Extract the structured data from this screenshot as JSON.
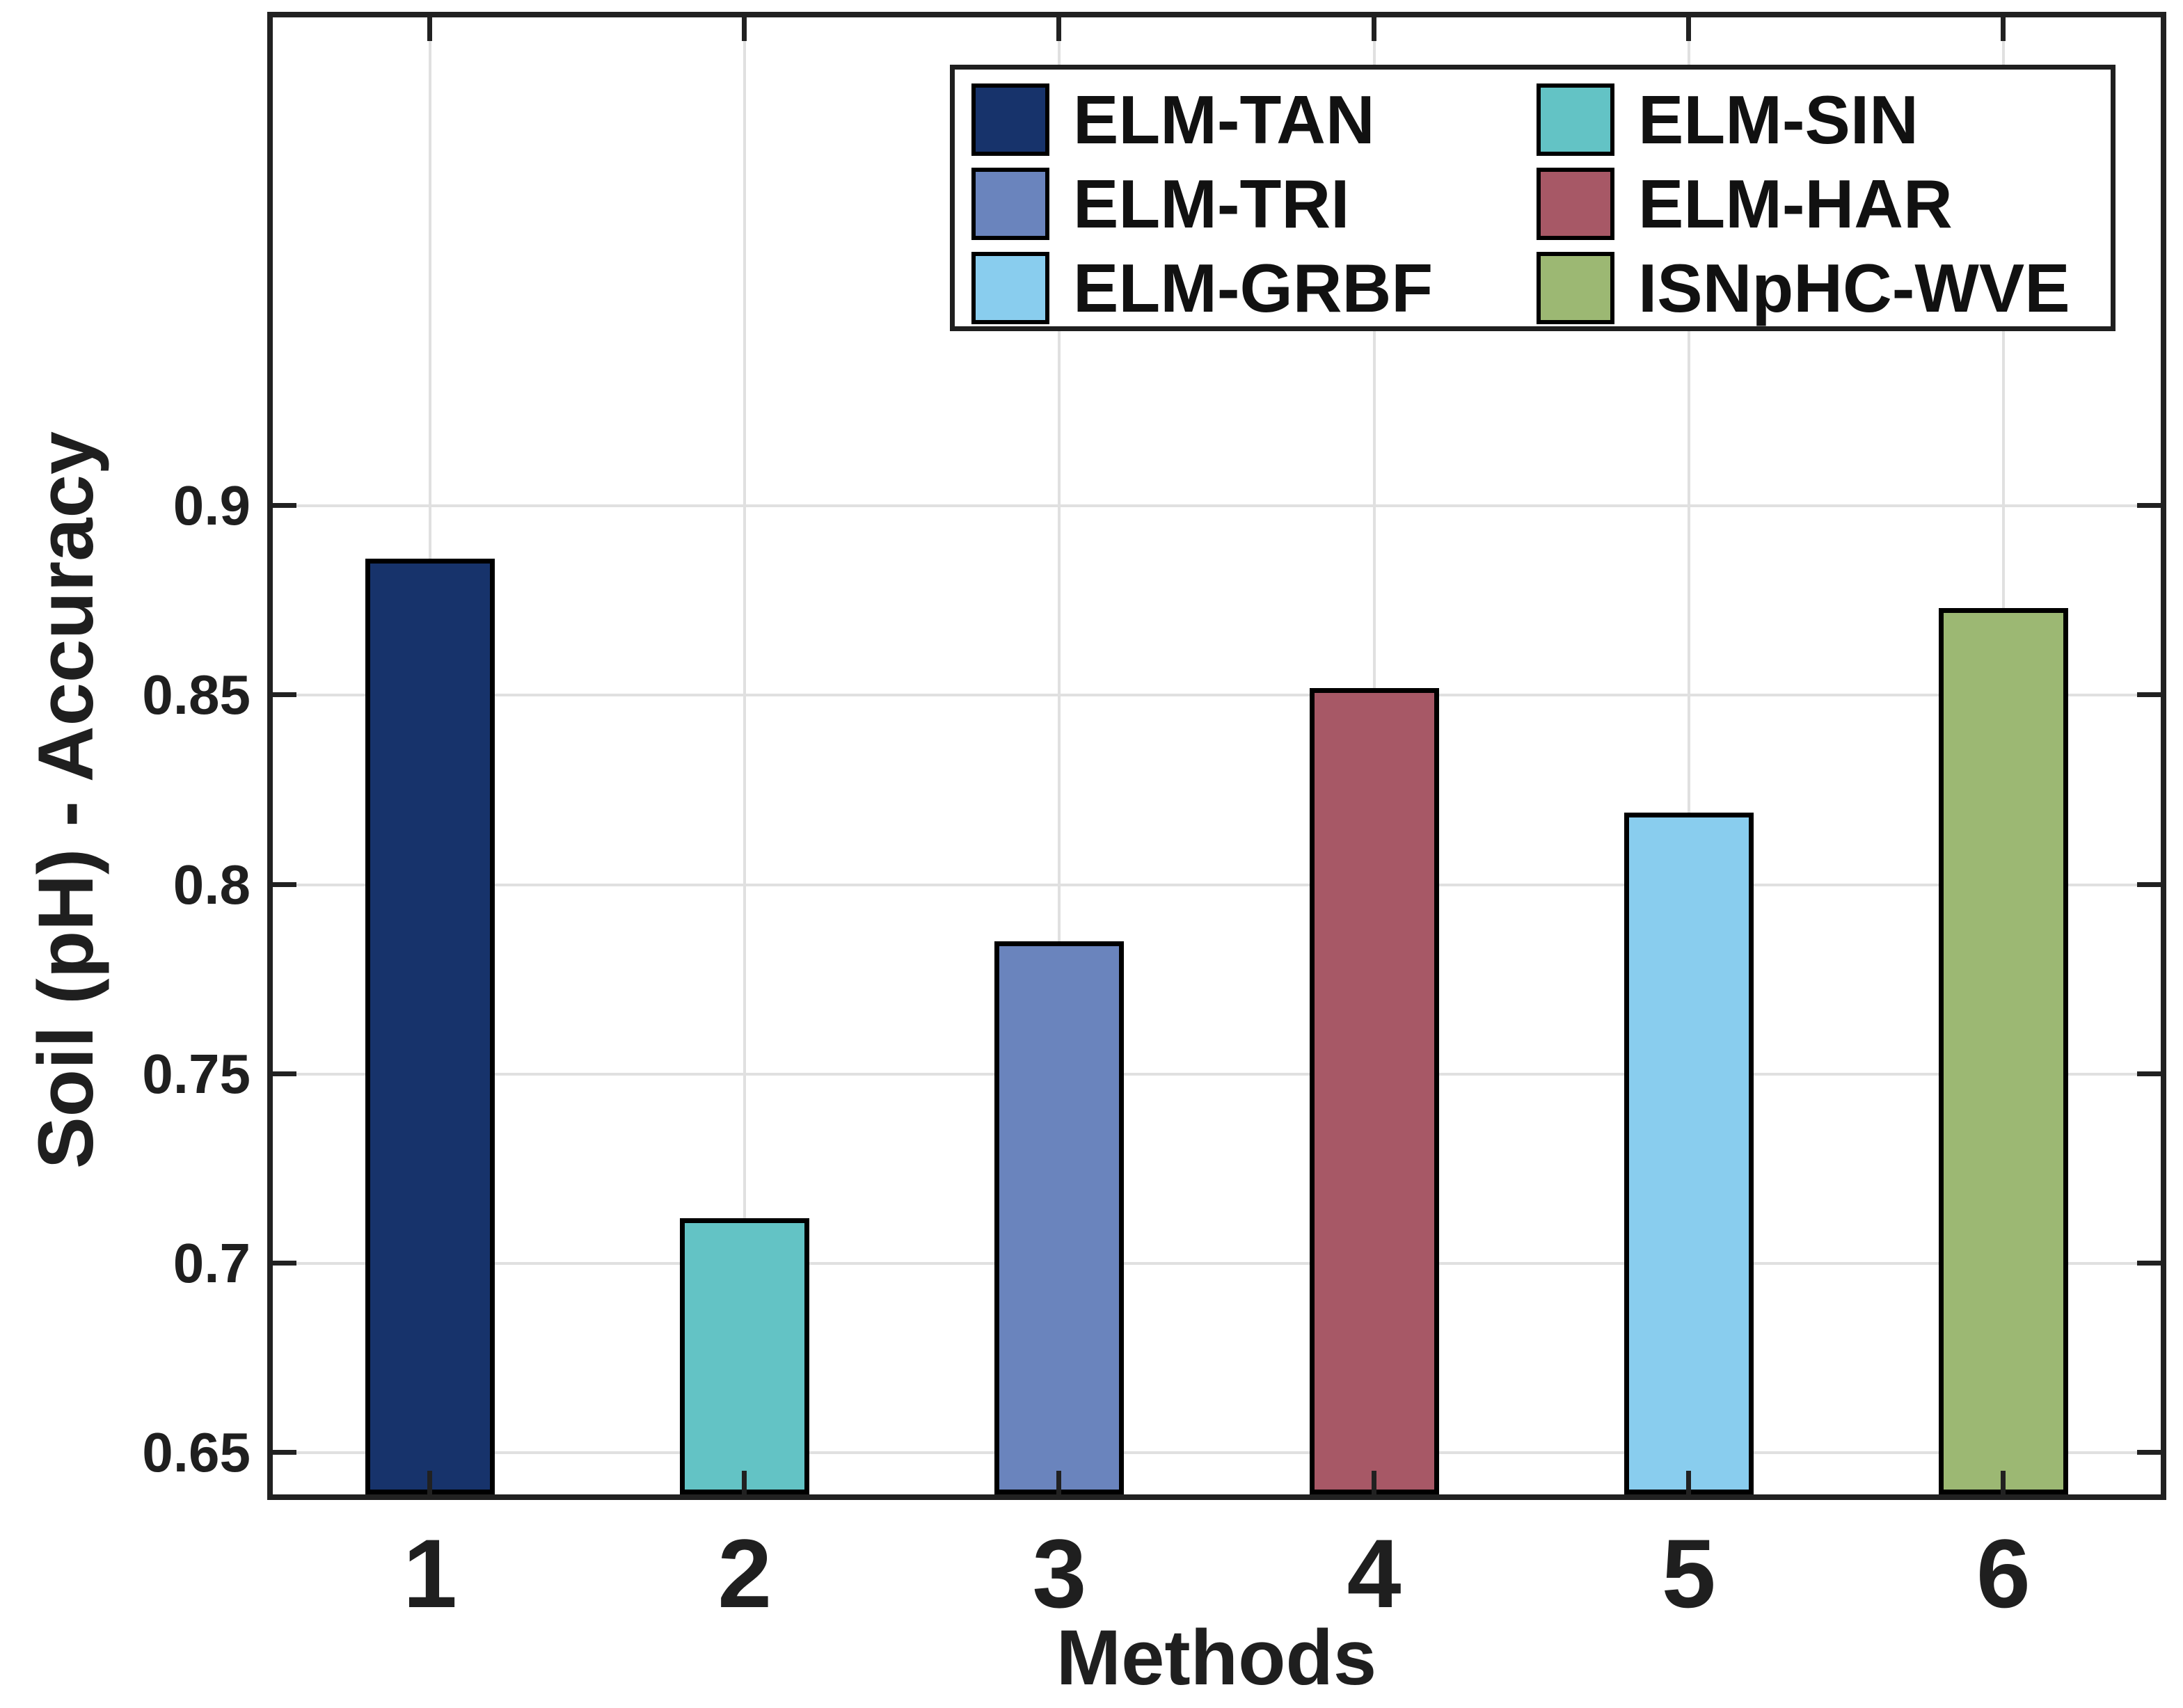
{
  "chart_data": {
    "type": "bar",
    "title": "",
    "xlabel": "Methods",
    "ylabel": "Soil (pH) - Accuracy",
    "categories": [
      "1",
      "2",
      "3",
      "4",
      "5",
      "6"
    ],
    "bars": [
      {
        "category": "1",
        "method": "ELM-TAN",
        "value": 0.886,
        "color": "#17336b"
      },
      {
        "category": "2",
        "method": "ELM-SIN",
        "value": 0.712,
        "color": "#63c3c5"
      },
      {
        "category": "3",
        "method": "ELM-TRI",
        "value": 0.785,
        "color": "#6a84bd"
      },
      {
        "category": "4",
        "method": "ELM-HAR",
        "value": 0.852,
        "color": "#a75866"
      },
      {
        "category": "5",
        "method": "ELM-GRBF",
        "value": 0.819,
        "color": "#89cdee"
      },
      {
        "category": "6",
        "method": "ISNpHC-WVE",
        "value": 0.873,
        "color": "#9cb873"
      }
    ],
    "yticks": [
      {
        "label": "0.9",
        "value": 0.9
      },
      {
        "label": "0.85",
        "value": 0.85
      },
      {
        "label": "0.8",
        "value": 0.8
      },
      {
        "label": "0.75",
        "value": 0.75
      },
      {
        "label": "0.7",
        "value": 0.7
      },
      {
        "label": "0.65",
        "value": 0.65
      }
    ],
    "ylim": [
      0.639,
      1.029
    ],
    "grid": true,
    "legend": {
      "position": "top-right-inside",
      "column_order": [
        [
          "ELM-TAN",
          "ELM-TRI",
          "ELM-GRBF"
        ],
        [
          "ELM-SIN",
          "ELM-HAR",
          "ISNpHC-WVE"
        ]
      ]
    },
    "colors": {
      "frame": "#212121",
      "grid": "#e0e0e0",
      "text": "#1f1f1f",
      "background": "#ffffff",
      "bar_border": "#000000"
    }
  }
}
